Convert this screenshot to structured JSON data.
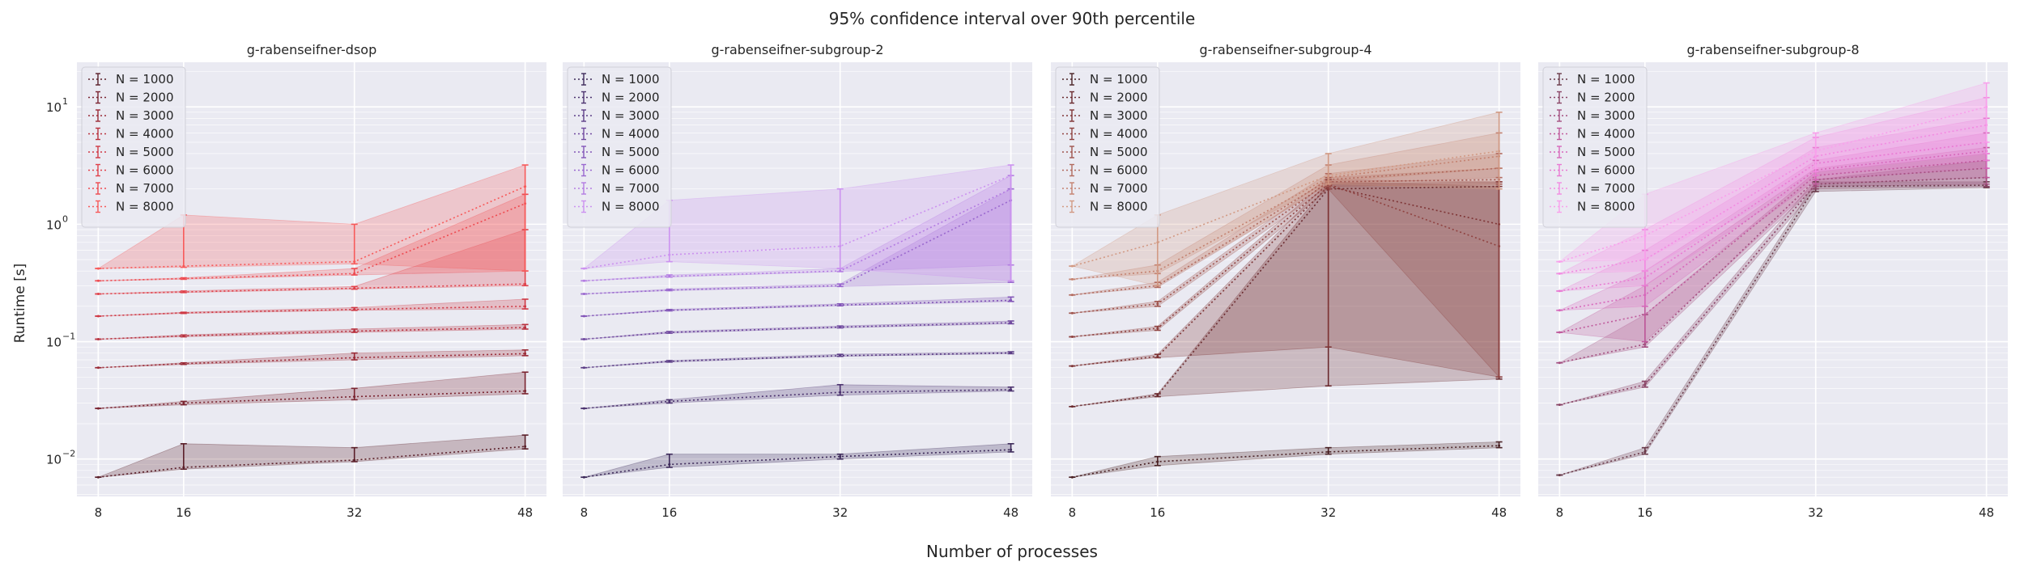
{
  "figure": {
    "suptitle": "95% confidence interval over 90th percentile",
    "xlabel": "Number of processes",
    "ylabel": "Runtime [s]"
  },
  "chart_data": [
    {
      "type": "line",
      "title": "g-rabenseifner-dsop",
      "xlabel": "",
      "ylabel": "Runtime [s]",
      "yscale": "log",
      "ylim": [
        0.0048,
        24
      ],
      "x": [
        8,
        16,
        32,
        48
      ],
      "xticks": [
        8,
        16,
        32,
        48
      ],
      "yticks": [
        0.01,
        0.1,
        1,
        10
      ],
      "ytick_labels": [
        "10",
        "10",
        "10",
        "10"
      ],
      "ytick_exponents": [
        "−2",
        "−1",
        "0",
        "1"
      ],
      "grid": true,
      "legend": "top-left",
      "series": [
        {
          "name": "N = 1000",
          "color": "#5a1f29",
          "values": [
            0.007,
            0.0085,
            0.0098,
            0.0128
          ],
          "lower": [
            0.007,
            0.0082,
            0.0095,
            0.0122
          ],
          "upper": [
            0.007,
            0.0135,
            0.0125,
            0.016
          ]
        },
        {
          "name": "N = 2000",
          "color": "#7a2430",
          "values": [
            0.027,
            0.03,
            0.034,
            0.038
          ],
          "lower": [
            0.027,
            0.029,
            0.032,
            0.036
          ],
          "upper": [
            0.027,
            0.031,
            0.04,
            0.055
          ]
        },
        {
          "name": "N = 3000",
          "color": "#9a2a36",
          "values": [
            0.06,
            0.065,
            0.073,
            0.079
          ],
          "lower": [
            0.06,
            0.064,
            0.07,
            0.076
          ],
          "upper": [
            0.06,
            0.066,
            0.08,
            0.085
          ]
        },
        {
          "name": "N = 4000",
          "color": "#b8313e",
          "values": [
            0.105,
            0.112,
            0.123,
            0.132
          ],
          "lower": [
            0.105,
            0.11,
            0.12,
            0.128
          ],
          "upper": [
            0.105,
            0.114,
            0.128,
            0.14
          ]
        },
        {
          "name": "N = 5000",
          "color": "#cf3844",
          "values": [
            0.165,
            0.176,
            0.188,
            0.2
          ],
          "lower": [
            0.165,
            0.174,
            0.185,
            0.19
          ],
          "upper": [
            0.165,
            0.178,
            0.195,
            0.23
          ]
        },
        {
          "name": "N = 6000",
          "color": "#e0414a",
          "values": [
            0.255,
            0.265,
            0.285,
            0.31
          ],
          "lower": [
            0.255,
            0.262,
            0.28,
            0.3
          ],
          "upper": [
            0.255,
            0.27,
            0.295,
            0.9
          ]
        },
        {
          "name": "N = 7000",
          "color": "#ee4a50",
          "values": [
            0.33,
            0.345,
            0.38,
            1.5
          ],
          "lower": [
            0.33,
            0.34,
            0.37,
            0.4
          ],
          "upper": [
            0.33,
            0.35,
            0.42,
            1.8
          ]
        },
        {
          "name": "N = 8000",
          "color": "#f75a5a",
          "values": [
            0.42,
            0.44,
            0.48,
            2.1
          ],
          "lower": [
            0.42,
            0.43,
            0.46,
            0.4
          ],
          "upper": [
            0.42,
            1.2,
            1.0,
            3.2
          ]
        }
      ]
    },
    {
      "type": "line",
      "title": "g-rabenseifner-subgroup-2",
      "xlabel": "",
      "ylabel": "",
      "yscale": "log",
      "ylim": [
        0.0048,
        24
      ],
      "x": [
        8,
        16,
        32,
        48
      ],
      "xticks": [
        8,
        16,
        32,
        48
      ],
      "grid": true,
      "legend": "top-left",
      "series": [
        {
          "name": "N = 1000",
          "color": "#3d2a5a",
          "values": [
            0.007,
            0.009,
            0.0105,
            0.012
          ],
          "lower": [
            0.007,
            0.0085,
            0.01,
            0.0115
          ],
          "upper": [
            0.007,
            0.011,
            0.011,
            0.0135
          ]
        },
        {
          "name": "N = 2000",
          "color": "#4c336f",
          "values": [
            0.027,
            0.031,
            0.037,
            0.039
          ],
          "lower": [
            0.027,
            0.03,
            0.035,
            0.038
          ],
          "upper": [
            0.027,
            0.032,
            0.043,
            0.041
          ]
        },
        {
          "name": "N = 3000",
          "color": "#5d3e87",
          "values": [
            0.06,
            0.068,
            0.076,
            0.08
          ],
          "lower": [
            0.06,
            0.067,
            0.075,
            0.079
          ],
          "upper": [
            0.06,
            0.069,
            0.078,
            0.082
          ]
        },
        {
          "name": "N = 4000",
          "color": "#70499f",
          "values": [
            0.105,
            0.12,
            0.133,
            0.145
          ],
          "lower": [
            0.105,
            0.118,
            0.131,
            0.142
          ],
          "upper": [
            0.105,
            0.122,
            0.136,
            0.15
          ]
        },
        {
          "name": "N = 5000",
          "color": "#8356b8",
          "values": [
            0.165,
            0.185,
            0.205,
            0.225
          ],
          "lower": [
            0.165,
            0.183,
            0.202,
            0.22
          ],
          "upper": [
            0.165,
            0.188,
            0.21,
            0.24
          ]
        },
        {
          "name": "N = 6000",
          "color": "#9a68cf",
          "values": [
            0.255,
            0.275,
            0.3,
            1.6
          ],
          "lower": [
            0.255,
            0.272,
            0.295,
            0.32
          ],
          "upper": [
            0.255,
            0.28,
            0.31,
            2.0
          ]
        },
        {
          "name": "N = 7000",
          "color": "#b37ce2",
          "values": [
            0.33,
            0.36,
            0.4,
            2.0
          ],
          "lower": [
            0.33,
            0.355,
            0.395,
            0.45
          ],
          "upper": [
            0.33,
            0.37,
            0.42,
            2.6
          ]
        },
        {
          "name": "N = 8000",
          "color": "#cc92f0",
          "values": [
            0.42,
            0.55,
            0.65,
            2.6
          ],
          "lower": [
            0.42,
            0.48,
            0.42,
            0.33
          ],
          "upper": [
            0.42,
            1.6,
            2.0,
            3.2
          ]
        }
      ]
    },
    {
      "type": "line",
      "title": "g-rabenseifner-subgroup-4",
      "xlabel": "",
      "ylabel": "",
      "yscale": "log",
      "ylim": [
        0.0048,
        24
      ],
      "x": [
        8,
        16,
        32,
        48
      ],
      "xticks": [
        8,
        16,
        32,
        48
      ],
      "grid": true,
      "legend": "top-left",
      "series": [
        {
          "name": "N = 1000",
          "color": "#4a2225",
          "values": [
            0.007,
            0.0095,
            0.0115,
            0.013
          ],
          "lower": [
            0.007,
            0.0088,
            0.011,
            0.0125
          ],
          "upper": [
            0.007,
            0.0105,
            0.0125,
            0.014
          ]
        },
        {
          "name": "N = 2000",
          "color": "#6a2a2e",
          "values": [
            0.028,
            0.035,
            2.0,
            2.1
          ],
          "lower": [
            0.028,
            0.034,
            0.042,
            0.048
          ],
          "upper": [
            0.028,
            0.036,
            2.2,
            2.3
          ]
        },
        {
          "name": "N = 3000",
          "color": "#7e3435",
          "values": [
            0.062,
            0.075,
            2.1,
            1.0
          ],
          "lower": [
            0.062,
            0.073,
            0.09,
            0.05
          ],
          "upper": [
            0.062,
            0.078,
            2.3,
            2.1
          ]
        },
        {
          "name": "N = 4000",
          "color": "#8f4240",
          "values": [
            0.11,
            0.13,
            2.2,
            0.65
          ],
          "lower": [
            0.11,
            0.125,
            2.0,
            0.05
          ],
          "upper": [
            0.11,
            0.135,
            2.4,
            2.3
          ]
        },
        {
          "name": "N = 5000",
          "color": "#a0554e",
          "values": [
            0.175,
            0.21,
            2.3,
            2.4
          ],
          "lower": [
            0.175,
            0.2,
            2.1,
            2.2
          ],
          "upper": [
            0.175,
            0.22,
            2.5,
            3.0
          ]
        },
        {
          "name": "N = 6000",
          "color": "#b26a5e",
          "values": [
            0.25,
            0.3,
            2.4,
            3.0
          ],
          "lower": [
            0.25,
            0.29,
            2.2,
            2.5
          ],
          "upper": [
            0.25,
            0.32,
            2.7,
            4.0
          ]
        },
        {
          "name": "N = 7000",
          "color": "#c48270",
          "values": [
            0.34,
            0.4,
            2.5,
            3.8
          ],
          "lower": [
            0.34,
            0.38,
            2.3,
            3.0
          ],
          "upper": [
            0.34,
            0.45,
            3.2,
            6.0
          ]
        },
        {
          "name": "N = 8000",
          "color": "#d29a84",
          "values": [
            0.44,
            0.7,
            2.6,
            4.2
          ],
          "lower": [
            0.44,
            0.3,
            2.2,
            2.0
          ],
          "upper": [
            0.44,
            1.2,
            4.0,
            9.0
          ]
        }
      ]
    },
    {
      "type": "line",
      "title": "g-rabenseifner-subgroup-8",
      "xlabel": "",
      "ylabel": "",
      "yscale": "log",
      "ylim": [
        0.0048,
        24
      ],
      "x": [
        8,
        16,
        32,
        48
      ],
      "xticks": [
        8,
        16,
        32,
        48
      ],
      "grid": true,
      "legend": "top-left",
      "series": [
        {
          "name": "N = 1000",
          "color": "#6a3a4a",
          "values": [
            0.0073,
            0.0115,
            2.1,
            2.15
          ],
          "lower": [
            0.0073,
            0.011,
            1.9,
            2.05
          ],
          "upper": [
            0.0073,
            0.0125,
            2.3,
            2.3
          ]
        },
        {
          "name": "N = 2000",
          "color": "#8a4466",
          "values": [
            0.029,
            0.043,
            2.2,
            2.5
          ],
          "lower": [
            0.029,
            0.041,
            2.0,
            2.1
          ],
          "upper": [
            0.029,
            0.046,
            2.4,
            3.5
          ]
        },
        {
          "name": "N = 3000",
          "color": "#a44f80",
          "values": [
            0.066,
            0.095,
            2.4,
            3.0
          ],
          "lower": [
            0.066,
            0.09,
            2.1,
            2.2
          ],
          "upper": [
            0.066,
            0.17,
            2.8,
            4.0
          ]
        },
        {
          "name": "N = 4000",
          "color": "#bf5a9c",
          "values": [
            0.12,
            0.17,
            2.6,
            3.5
          ],
          "lower": [
            0.12,
            0.1,
            2.2,
            2.5
          ],
          "upper": [
            0.12,
            0.3,
            3.0,
            4.5
          ]
        },
        {
          "name": "N = 5000",
          "color": "#d768bb",
          "values": [
            0.185,
            0.25,
            2.9,
            4.2
          ],
          "lower": [
            0.185,
            0.2,
            2.4,
            3.0
          ],
          "upper": [
            0.185,
            0.4,
            3.5,
            6.0
          ]
        },
        {
          "name": "N = 6000",
          "color": "#e97ad3",
          "values": [
            0.27,
            0.35,
            3.3,
            5.0
          ],
          "lower": [
            0.27,
            0.3,
            2.6,
            3.5
          ],
          "upper": [
            0.27,
            0.6,
            4.5,
            8.0
          ]
        },
        {
          "name": "N = 7000",
          "color": "#f38be2",
          "values": [
            0.38,
            0.5,
            3.8,
            7.0
          ],
          "lower": [
            0.38,
            0.4,
            2.8,
            4.0
          ],
          "upper": [
            0.38,
            0.9,
            5.5,
            12.0
          ]
        },
        {
          "name": "N = 8000",
          "color": "#f9a0ec",
          "values": [
            0.48,
            0.8,
            4.2,
            10.0
          ],
          "lower": [
            0.48,
            0.5,
            3.0,
            5.0
          ],
          "upper": [
            0.48,
            1.8,
            6.0,
            16.0
          ]
        }
      ]
    }
  ]
}
